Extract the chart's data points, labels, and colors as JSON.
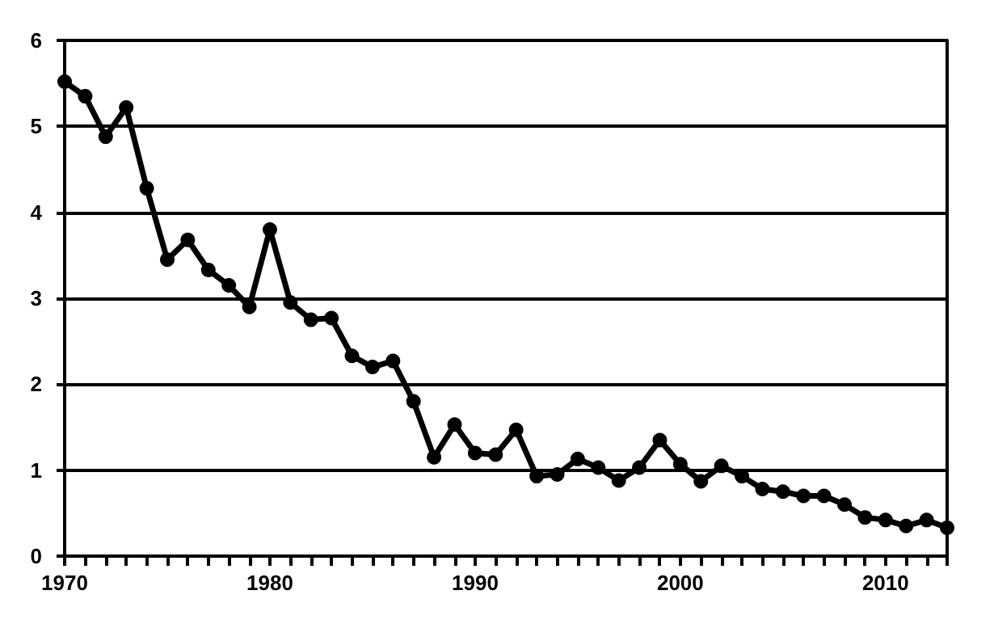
{
  "chart_data": {
    "type": "line",
    "x": [
      1970,
      1971,
      1972,
      1973,
      1974,
      1975,
      1976,
      1977,
      1978,
      1979,
      1980,
      1981,
      1982,
      1983,
      1984,
      1985,
      1986,
      1987,
      1988,
      1989,
      1990,
      1991,
      1992,
      1993,
      1994,
      1995,
      1996,
      1997,
      1998,
      1999,
      2000,
      2001,
      2002,
      2003,
      2004,
      2005,
      2006,
      2007,
      2008,
      2009,
      2010,
      2011,
      2012,
      2013
    ],
    "series": [
      {
        "color": "#000000",
        "values": [
          5.52,
          5.35,
          4.88,
          5.22,
          4.28,
          3.45,
          3.68,
          3.33,
          3.15,
          2.9,
          3.8,
          2.95,
          2.75,
          2.77,
          2.33,
          2.2,
          2.27,
          1.8,
          1.15,
          1.53,
          1.2,
          1.18,
          1.47,
          0.93,
          0.95,
          1.13,
          1.03,
          0.88,
          1.03,
          1.35,
          1.07,
          0.87,
          1.05,
          0.93,
          0.78,
          0.75,
          0.7,
          0.7,
          0.6,
          0.45,
          0.42,
          0.35,
          0.42,
          0.33
        ]
      }
    ],
    "xlim": [
      1970,
      2013
    ],
    "xticks": [
      1970,
      {
        "value": 1971,
        "label": null
      },
      {
        "value": 1972,
        "label": null
      },
      {
        "value": 1973,
        "label": null
      },
      {
        "value": 1974,
        "label": null
      },
      {
        "value": 1975,
        "label": null
      },
      {
        "value": 1976,
        "label": null
      },
      {
        "value": 1977,
        "label": null
      },
      {
        "value": 1978,
        "label": null
      },
      {
        "value": 1979,
        "label": null
      },
      1980,
      {
        "value": 1981,
        "label": null
      },
      {
        "value": 1982,
        "label": null
      },
      {
        "value": 1983,
        "label": null
      },
      {
        "value": 1984,
        "label": null
      },
      {
        "value": 1985,
        "label": null
      },
      {
        "value": 1986,
        "label": null
      },
      {
        "value": 1987,
        "label": null
      },
      {
        "value": 1988,
        "label": null
      },
      {
        "value": 1989,
        "label": null
      },
      1990,
      {
        "value": 1991,
        "label": null
      },
      {
        "value": 1992,
        "label": null
      },
      {
        "value": 1993,
        "label": null
      },
      {
        "value": 1994,
        "label": null
      },
      {
        "value": 1995,
        "label": null
      },
      {
        "value": 1996,
        "label": null
      },
      {
        "value": 1997,
        "label": null
      },
      {
        "value": 1998,
        "label": null
      },
      {
        "value": 1999,
        "label": null
      },
      2000,
      {
        "value": 2001,
        "label": null
      },
      {
        "value": 2002,
        "label": null
      },
      {
        "value": 2003,
        "label": null
      },
      {
        "value": 2004,
        "label": null
      },
      {
        "value": 2005,
        "label": null
      },
      {
        "value": 2006,
        "label": null
      },
      {
        "value": 2007,
        "label": null
      },
      {
        "value": 2008,
        "label": null
      },
      {
        "value": 2009,
        "label": null
      },
      2010,
      {
        "value": 2011,
        "label": null
      },
      {
        "value": 2012,
        "label": null
      },
      {
        "value": 2013,
        "label": null
      }
    ],
    "ylim": [
      0,
      6
    ],
    "yticks": [
      0,
      1,
      2,
      3,
      4,
      5,
      6
    ],
    "grid": "y",
    "marker": "circle",
    "line_style": "solid"
  }
}
